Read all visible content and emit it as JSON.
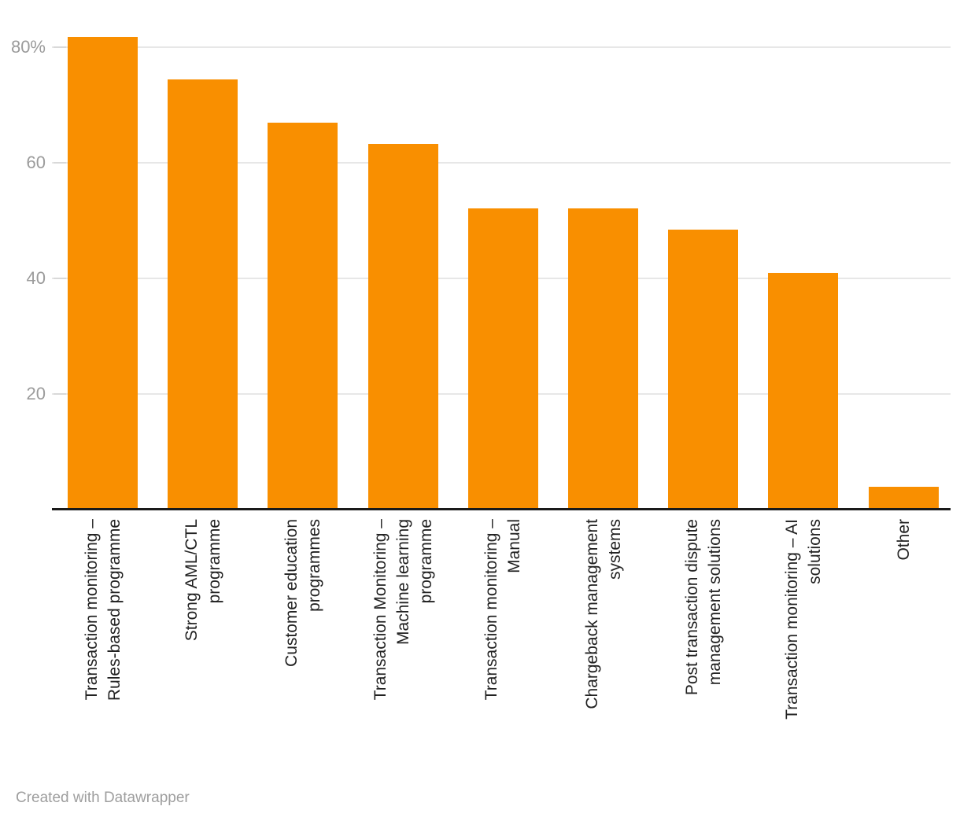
{
  "chart_data": {
    "type": "bar",
    "title": "",
    "xlabel": "",
    "ylabel": "",
    "categories": [
      "Transaction monitoring – Rules-based programme",
      "Strong AML/CTL programme",
      "Customer education programmes",
      "Transaction Monitoring – Machine learning programme",
      "Transaction monitoring – Manual",
      "Chargeback management systems",
      "Post transaction dispute management solutions",
      "Transaction monitoring – AI solutions",
      "Other"
    ],
    "categories_lines": [
      [
        "Transaction monitoring –",
        "Rules-based programme"
      ],
      [
        "Strong AML/CTL",
        "programme"
      ],
      [
        "Customer education",
        "programmes"
      ],
      [
        "Transaction Monitoring –",
        "Machine learning",
        "programme"
      ],
      [
        "Transaction monitoring –",
        "Manual"
      ],
      [
        "Chargeback management",
        "systems"
      ],
      [
        "Post transaction dispute",
        "management solutions"
      ],
      [
        "Transaction monitoring – AI",
        "solutions"
      ],
      [
        "Other"
      ]
    ],
    "values": [
      81.5,
      74.1,
      66.7,
      63.0,
      51.9,
      51.9,
      48.1,
      40.7,
      3.7
    ],
    "value_unit": "%",
    "ylim": [
      0,
      84
    ],
    "yticks": [
      {
        "value": 80,
        "label": "80%"
      },
      {
        "value": 60,
        "label": "60"
      },
      {
        "value": 40,
        "label": "40"
      },
      {
        "value": 20,
        "label": "20"
      }
    ],
    "grid": true,
    "legend": "none",
    "bar_color": "#F98F00"
  },
  "footer": {
    "credit": "Created with Datawrapper"
  },
  "colors": {
    "bar": "#F98F00",
    "gridline": "#e7e7e7",
    "tick": "#d9d9d9",
    "axis_tick_label": "#9b9b9b",
    "category_label": "#222222",
    "baseline": "#1a1a1a",
    "credit_text": "#9e9e9e",
    "background": "#ffffff"
  }
}
